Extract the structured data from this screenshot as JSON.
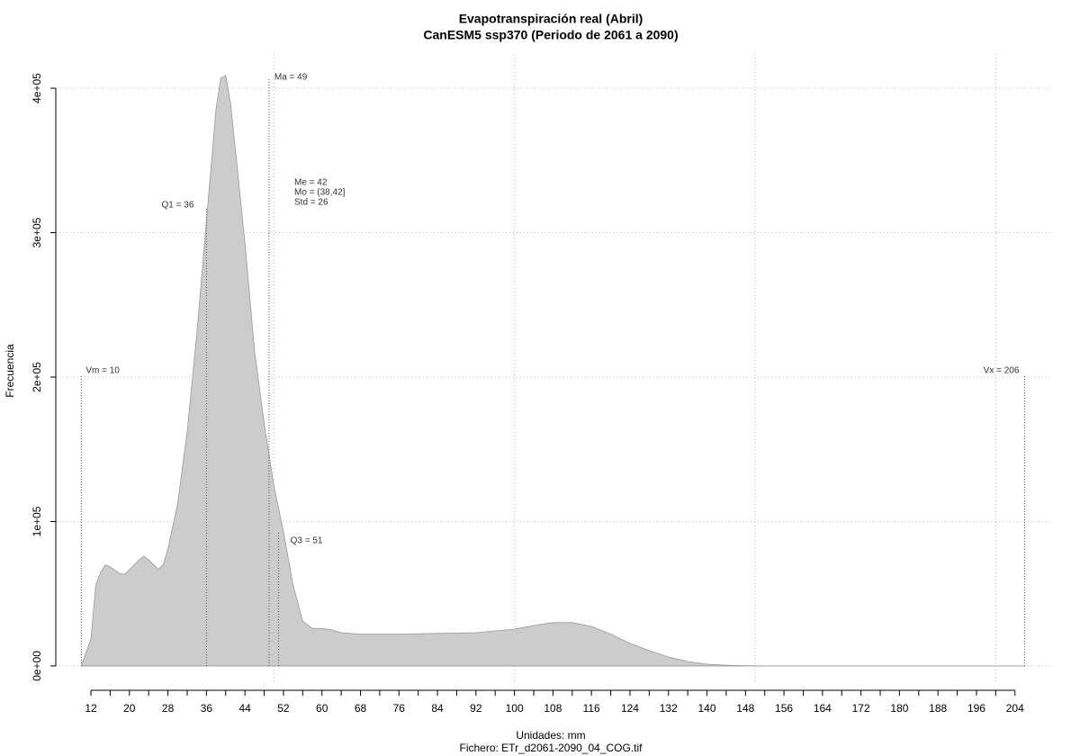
{
  "chart_data": {
    "type": "area",
    "title": "Evapotranspiración real (Abril)",
    "subtitle": "CanESM5 ssp370 (Periodo de 2061 a 2090)",
    "x_label": "Unidades: mm",
    "file_label": "Fichero: ETr_d2061-2090_04_COG.tif",
    "y_label": "Frecuencia",
    "xlim": [
      4.7,
      211.9
    ],
    "ylim": [
      -12500,
      423700
    ],
    "xticks": [
      12,
      20,
      28,
      36,
      44,
      52,
      60,
      68,
      76,
      84,
      92,
      100,
      108,
      116,
      124,
      132,
      140,
      148,
      156,
      164,
      172,
      180,
      188,
      196,
      204
    ],
    "xminor_ticks": [
      16,
      24,
      32,
      40,
      48,
      56,
      64,
      72,
      80,
      88,
      96,
      104,
      112,
      120,
      128,
      136,
      144,
      152,
      160,
      168,
      176,
      184,
      192,
      200
    ],
    "xgrid": [
      50,
      100,
      150,
      200
    ],
    "yticks": [
      {
        "value": 0,
        "label": "0e+00"
      },
      {
        "value": 100000,
        "label": "1e+05"
      },
      {
        "value": 200000,
        "label": "2e+05"
      },
      {
        "value": 300000,
        "label": "3e+05"
      },
      {
        "value": 400000,
        "label": "4e+05"
      }
    ],
    "grid": true,
    "color": "#cccccc",
    "x": [
      10,
      12,
      13,
      14,
      15,
      16,
      18,
      19,
      20,
      22,
      23,
      24,
      26,
      27,
      28,
      30,
      32,
      34,
      36,
      38,
      39,
      40,
      41,
      42,
      44,
      46,
      48,
      50,
      52,
      54,
      56,
      58,
      60,
      62,
      64,
      68,
      76,
      84,
      92,
      100,
      104,
      108,
      112,
      116,
      120,
      124,
      128,
      132,
      136,
      140,
      144,
      148,
      152,
      206
    ],
    "values": [
      0,
      18700,
      56000,
      65000,
      70000,
      68500,
      64000,
      63500,
      66700,
      73500,
      76000,
      73500,
      67000,
      70000,
      81000,
      112000,
      162000,
      230000,
      308000,
      386000,
      407000,
      409000,
      390000,
      358000,
      293000,
      218000,
      168000,
      125000,
      93000,
      56000,
      31000,
      26000,
      26000,
      25000,
      23000,
      22000,
      22000,
      22500,
      23000,
      25500,
      28000,
      30000,
      30000,
      27400,
      22000,
      15600,
      10600,
      6200,
      3100,
      1200,
      500,
      200,
      0,
      0
    ],
    "annotations": [
      {
        "text": "Vm = 10",
        "x": 10
      },
      {
        "text": "Q1 = 36",
        "x": 36
      },
      {
        "text": "Ma = 49",
        "x": 49
      },
      {
        "text": "Q3 = 51",
        "x": 51
      },
      {
        "text": "Vx = 206",
        "x": 206
      }
    ],
    "stats": [
      "Me = 42",
      "Mo = (38,42]",
      "Std = 26"
    ]
  }
}
